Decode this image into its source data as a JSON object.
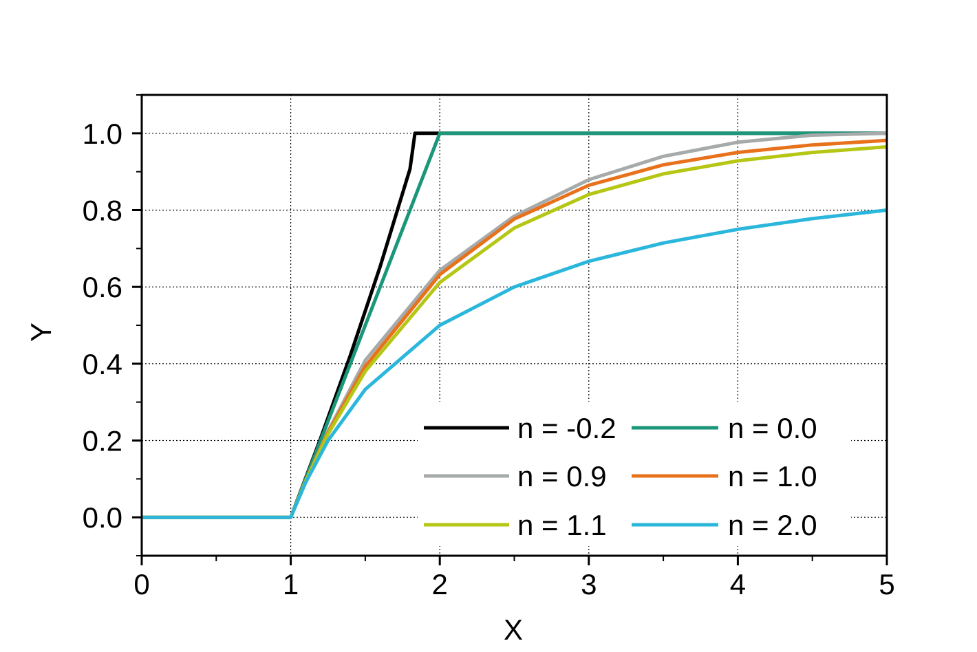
{
  "chart_data": {
    "type": "line",
    "title": "",
    "xlabel": "X",
    "ylabel": "Y",
    "xlim": [
      0,
      5
    ],
    "ylim": [
      -0.1,
      1.1
    ],
    "xticks": [
      0,
      1,
      2,
      3,
      4,
      5
    ],
    "xtick_labels": [
      "0",
      "1",
      "2",
      "3",
      "4",
      "5"
    ],
    "yticks": [
      0.0,
      0.2,
      0.4,
      0.6,
      0.8,
      1.0
    ],
    "ytick_labels": [
      "0.0",
      "0.2",
      "0.4",
      "0.6",
      "0.8",
      "1.0"
    ],
    "grid": true,
    "legend_position": "bottom-right",
    "series": [
      {
        "name": "n = -0.2",
        "color": "#000000",
        "x": [
          0,
          1,
          1.2,
          1.4,
          1.6,
          1.8,
          1.8333,
          5
        ],
        "y": [
          0,
          0,
          0.2052,
          0.4218,
          0.6535,
          0.9071,
          1.0,
          1.0
        ]
      },
      {
        "name": "n = 0.0",
        "color": "#1a9679",
        "x": [
          0,
          1,
          2,
          5
        ],
        "y": [
          0,
          0,
          1.0,
          1.0
        ]
      },
      {
        "name": "n = 0.9",
        "color": "#a7aaaa",
        "x": [
          0,
          1,
          1.1,
          1.25,
          1.5,
          2,
          2.5,
          3,
          3.5,
          4,
          4.5,
          5
        ],
        "y": [
          0,
          0,
          0.0943,
          0.2241,
          0.4089,
          0.6431,
          0.7845,
          0.8794,
          0.9401,
          0.9767,
          0.9952,
          1.0
        ]
      },
      {
        "name": "n = 1.0",
        "color": "#e8711c",
        "x": [
          0,
          1,
          1.1,
          1.25,
          1.5,
          2,
          2.5,
          3,
          3.5,
          4,
          4.5,
          5
        ],
        "y": [
          0,
          0,
          0.0952,
          0.2212,
          0.3935,
          0.6321,
          0.7769,
          0.8647,
          0.9179,
          0.9502,
          0.9698,
          0.9817
        ]
      },
      {
        "name": "n = 1.1",
        "color": "#b5c614",
        "x": [
          0,
          1,
          1.1,
          1.25,
          1.5,
          2,
          2.5,
          3,
          3.5,
          4,
          4.5,
          5
        ],
        "y": [
          0,
          0,
          0.0943,
          0.2171,
          0.3804,
          0.6116,
          0.7534,
          0.8406,
          0.8944,
          0.9283,
          0.9503,
          0.9648
        ]
      },
      {
        "name": "n = 2.0",
        "color": "#2bb7dc",
        "x": [
          0,
          1,
          1.1,
          1.25,
          1.5,
          2,
          2.5,
          3,
          3.5,
          4,
          4.5,
          5
        ],
        "y": [
          0,
          0,
          0.0909,
          0.2,
          0.3333,
          0.5,
          0.6,
          0.6667,
          0.7143,
          0.75,
          0.7778,
          0.8
        ]
      }
    ]
  }
}
